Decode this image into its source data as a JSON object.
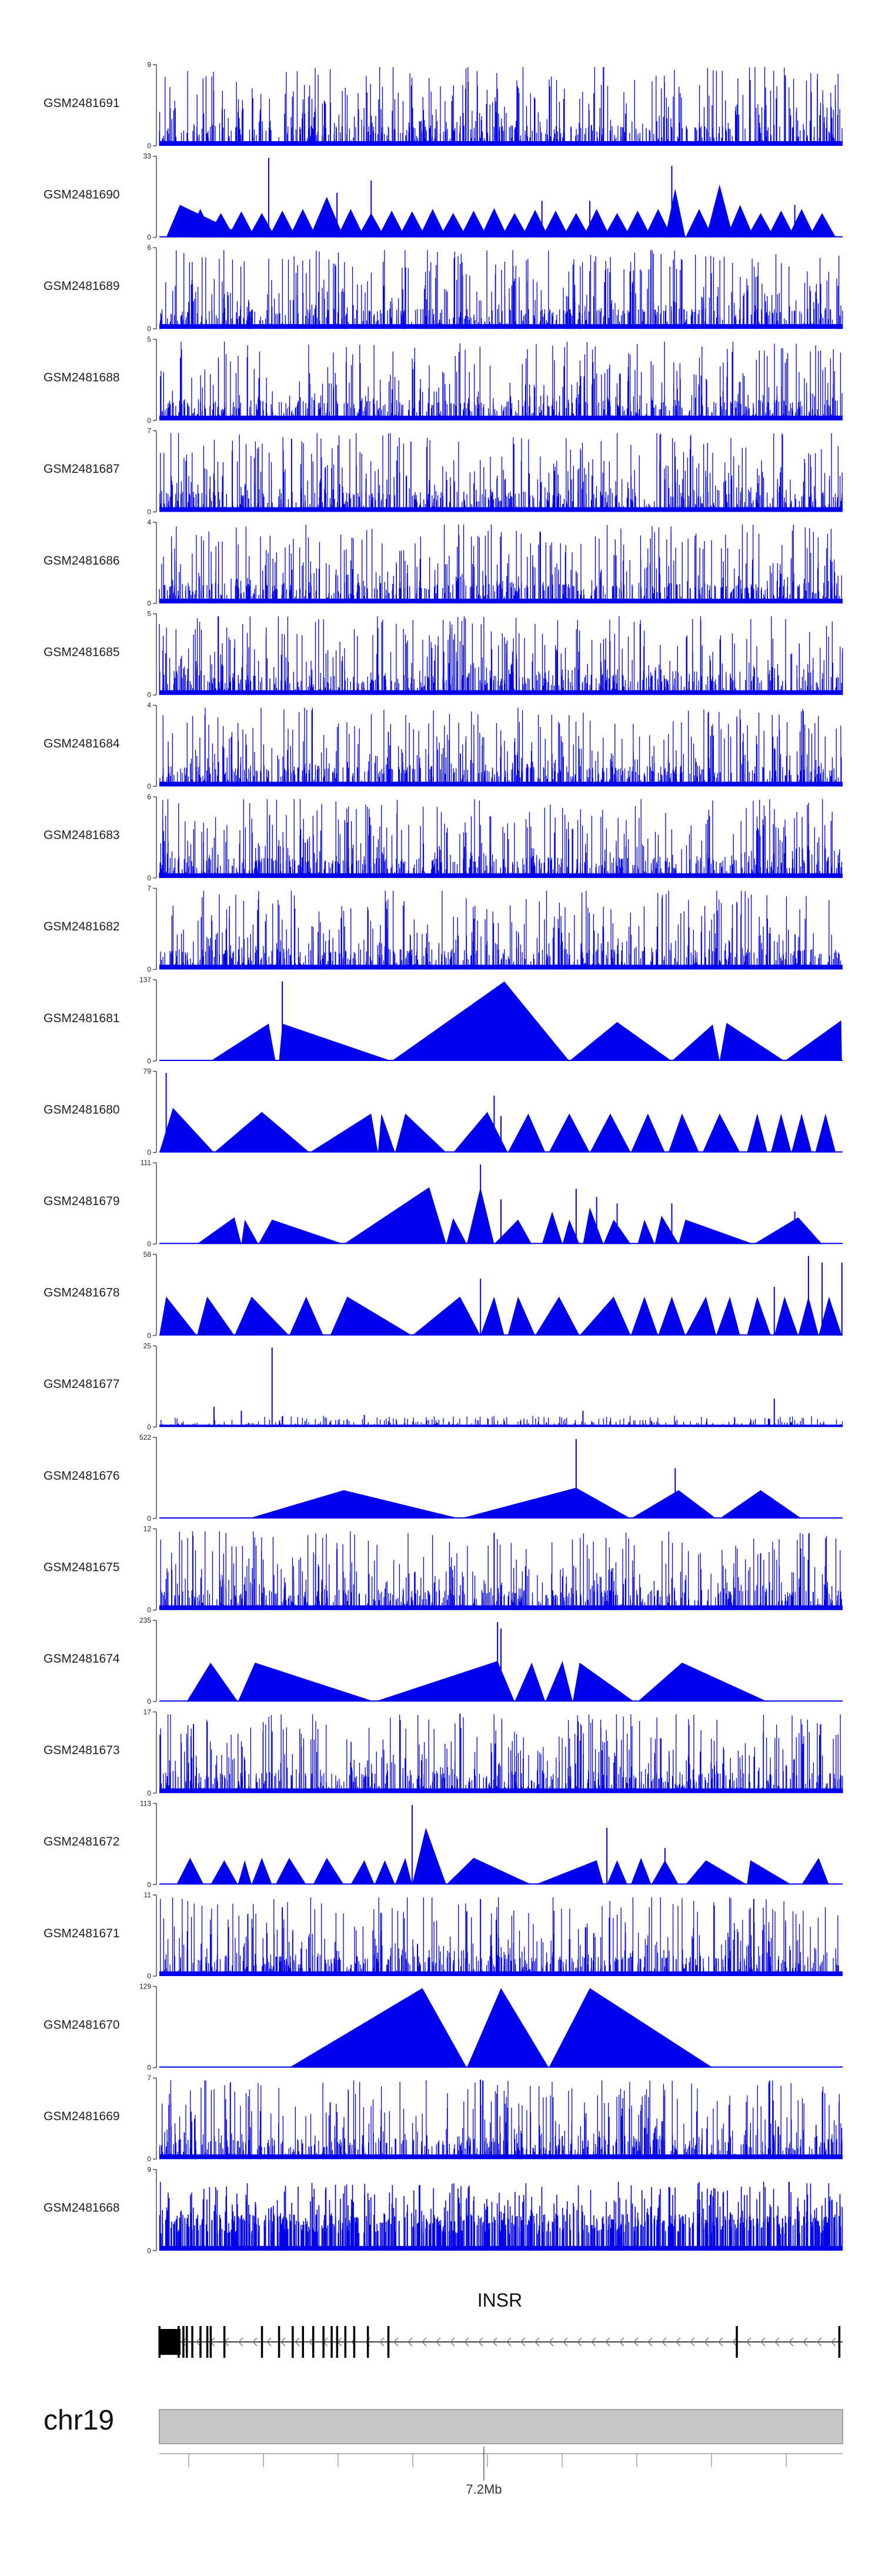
{
  "chart_data": {
    "type": "area",
    "title": "",
    "track_color": "#0000ee",
    "tracks": [
      {
        "name": "GSM2481691",
        "ymax": "9",
        "ymin": "0",
        "style": "spiky",
        "seed": 11
      },
      {
        "name": "GSM2481690",
        "ymax": "33",
        "ymin": "0",
        "style": "tri",
        "seed": 12,
        "peaks": [
          [
            0.01,
            0.03,
            0.13,
            0.4
          ],
          [
            0.04,
            0.06,
            0.08,
            0.35
          ],
          [
            0.07,
            0.09,
            0.11,
            0.3
          ],
          [
            0.1,
            0.12,
            0.14,
            0.32
          ],
          [
            0.13,
            0.15,
            0.17,
            0.3
          ],
          [
            0.16,
            0.18,
            0.2,
            0.33
          ],
          [
            0.19,
            0.21,
            0.23,
            0.35
          ],
          [
            0.22,
            0.245,
            0.27,
            0.5
          ],
          [
            0.26,
            0.28,
            0.3,
            0.35
          ],
          [
            0.29,
            0.31,
            0.33,
            0.3
          ],
          [
            0.32,
            0.34,
            0.36,
            0.33
          ],
          [
            0.35,
            0.37,
            0.39,
            0.32
          ],
          [
            0.38,
            0.4,
            0.42,
            0.35
          ],
          [
            0.41,
            0.43,
            0.45,
            0.3
          ],
          [
            0.44,
            0.46,
            0.48,
            0.33
          ],
          [
            0.47,
            0.49,
            0.51,
            0.36
          ],
          [
            0.5,
            0.52,
            0.54,
            0.3
          ],
          [
            0.53,
            0.55,
            0.57,
            0.34
          ],
          [
            0.56,
            0.58,
            0.6,
            0.33
          ],
          [
            0.59,
            0.61,
            0.63,
            0.3
          ],
          [
            0.62,
            0.64,
            0.66,
            0.35
          ],
          [
            0.65,
            0.67,
            0.69,
            0.3
          ],
          [
            0.68,
            0.7,
            0.72,
            0.33
          ],
          [
            0.71,
            0.73,
            0.75,
            0.35
          ],
          [
            0.74,
            0.755,
            0.77,
            0.6
          ],
          [
            0.77,
            0.79,
            0.81,
            0.35
          ],
          [
            0.8,
            0.82,
            0.84,
            0.65
          ],
          [
            0.83,
            0.85,
            0.87,
            0.4
          ],
          [
            0.86,
            0.88,
            0.9,
            0.3
          ],
          [
            0.89,
            0.91,
            0.93,
            0.33
          ],
          [
            0.92,
            0.94,
            0.96,
            0.35
          ],
          [
            0.95,
            0.97,
            0.99,
            0.3
          ]
        ],
        "spikes": [
          [
            0.16,
            0.98
          ],
          [
            0.26,
            0.55
          ],
          [
            0.31,
            0.7
          ],
          [
            0.56,
            0.45
          ],
          [
            0.63,
            0.45
          ],
          [
            0.75,
            0.88
          ],
          [
            0.93,
            0.4
          ]
        ]
      },
      {
        "name": "GSM2481689",
        "ymax": "6",
        "ymin": "0",
        "style": "spiky",
        "seed": 13
      },
      {
        "name": "GSM2481688",
        "ymax": "5",
        "ymin": "0",
        "style": "spiky",
        "seed": 14
      },
      {
        "name": "GSM2481687",
        "ymax": "7",
        "ymin": "0",
        "style": "spiky",
        "seed": 15
      },
      {
        "name": "GSM2481686",
        "ymax": "4",
        "ymin": "0",
        "style": "spiky",
        "seed": 16
      },
      {
        "name": "GSM2481685",
        "ymax": "5",
        "ymin": "0",
        "style": "spiky",
        "seed": 17
      },
      {
        "name": "GSM2481684",
        "ymax": "4",
        "ymin": "0",
        "style": "spiky",
        "seed": 18
      },
      {
        "name": "GSM2481683",
        "ymax": "6",
        "ymin": "0",
        "style": "spiky",
        "seed": 19
      },
      {
        "name": "GSM2481682",
        "ymax": "7",
        "ymin": "0",
        "style": "spiky",
        "seed": 20
      },
      {
        "name": "GSM2481681",
        "ymax": "137",
        "ymin": "0",
        "style": "tri",
        "seed": 21,
        "peaks": [
          [
            0.075,
            0.16,
            0.17,
            0.46
          ],
          [
            0.175,
            0.18,
            0.34,
            0.46
          ],
          [
            0.34,
            0.505,
            0.6,
            0.98
          ],
          [
            0.6,
            0.67,
            0.75,
            0.48
          ],
          [
            0.75,
            0.81,
            0.82,
            0.45
          ],
          [
            0.82,
            0.83,
            0.915,
            0.47
          ],
          [
            0.915,
            0.998,
            0.999,
            0.5
          ]
        ],
        "spikes": [
          [
            0.18,
            0.98
          ]
        ]
      },
      {
        "name": "GSM2481680",
        "ymax": "79",
        "ymin": "0",
        "style": "tri",
        "seed": 22,
        "peaks": [
          [
            0.0,
            0.02,
            0.08,
            0.55
          ],
          [
            0.08,
            0.15,
            0.22,
            0.5
          ],
          [
            0.22,
            0.31,
            0.32,
            0.48
          ],
          [
            0.32,
            0.325,
            0.345,
            0.48
          ],
          [
            0.345,
            0.36,
            0.42,
            0.48
          ],
          [
            0.43,
            0.48,
            0.51,
            0.5
          ],
          [
            0.51,
            0.54,
            0.565,
            0.48
          ],
          [
            0.57,
            0.6,
            0.63,
            0.48
          ],
          [
            0.63,
            0.66,
            0.69,
            0.48
          ],
          [
            0.69,
            0.715,
            0.74,
            0.48
          ],
          [
            0.745,
            0.765,
            0.79,
            0.48
          ],
          [
            0.795,
            0.82,
            0.85,
            0.48
          ],
          [
            0.86,
            0.875,
            0.89,
            0.48
          ],
          [
            0.895,
            0.91,
            0.925,
            0.48
          ],
          [
            0.925,
            0.94,
            0.955,
            0.48
          ],
          [
            0.96,
            0.975,
            0.99,
            0.48
          ]
        ],
        "spikes": [
          [
            0.01,
            0.98
          ],
          [
            0.49,
            0.7
          ],
          [
            0.5,
            0.45
          ]
        ]
      },
      {
        "name": "GSM2481679",
        "ymax": "111",
        "ymin": "0",
        "style": "tri",
        "seed": 23,
        "peaks": [
          [
            0.055,
            0.11,
            0.12,
            0.33
          ],
          [
            0.12,
            0.125,
            0.145,
            0.3
          ],
          [
            0.145,
            0.165,
            0.27,
            0.3
          ],
          [
            0.27,
            0.395,
            0.42,
            0.7
          ],
          [
            0.42,
            0.43,
            0.45,
            0.32
          ],
          [
            0.45,
            0.47,
            0.49,
            0.7
          ],
          [
            0.49,
            0.525,
            0.545,
            0.3
          ],
          [
            0.56,
            0.575,
            0.59,
            0.4
          ],
          [
            0.59,
            0.6,
            0.615,
            0.3
          ],
          [
            0.62,
            0.63,
            0.65,
            0.45
          ],
          [
            0.65,
            0.665,
            0.69,
            0.3
          ],
          [
            0.7,
            0.71,
            0.725,
            0.3
          ],
          [
            0.725,
            0.735,
            0.76,
            0.35
          ],
          [
            0.76,
            0.77,
            0.87,
            0.3
          ],
          [
            0.87,
            0.935,
            0.97,
            0.33
          ]
        ],
        "spikes": [
          [
            0.47,
            0.98
          ],
          [
            0.5,
            0.55
          ],
          [
            0.61,
            0.68
          ],
          [
            0.64,
            0.58
          ],
          [
            0.67,
            0.5
          ],
          [
            0.75,
            0.5
          ],
          [
            0.93,
            0.4
          ]
        ]
      },
      {
        "name": "GSM2481678",
        "ymax": "58",
        "ymin": "0",
        "style": "tri",
        "seed": 24,
        "peaks": [
          [
            0.0,
            0.01,
            0.055,
            0.48
          ],
          [
            0.055,
            0.07,
            0.11,
            0.48
          ],
          [
            0.11,
            0.135,
            0.19,
            0.48
          ],
          [
            0.19,
            0.215,
            0.24,
            0.48
          ],
          [
            0.25,
            0.275,
            0.37,
            0.48
          ],
          [
            0.37,
            0.44,
            0.47,
            0.48
          ],
          [
            0.47,
            0.49,
            0.505,
            0.48
          ],
          [
            0.51,
            0.525,
            0.55,
            0.48
          ],
          [
            0.55,
            0.585,
            0.615,
            0.48
          ],
          [
            0.615,
            0.665,
            0.69,
            0.48
          ],
          [
            0.69,
            0.71,
            0.73,
            0.48
          ],
          [
            0.73,
            0.75,
            0.77,
            0.48
          ],
          [
            0.77,
            0.8,
            0.815,
            0.48
          ],
          [
            0.815,
            0.835,
            0.85,
            0.48
          ],
          [
            0.86,
            0.875,
            0.895,
            0.48
          ],
          [
            0.9,
            0.915,
            0.935,
            0.48
          ],
          [
            0.935,
            0.95,
            0.965,
            0.48
          ],
          [
            0.965,
            0.98,
            0.999,
            0.48
          ]
        ],
        "spikes": [
          [
            0.47,
            0.7
          ],
          [
            0.95,
            0.98
          ],
          [
            0.97,
            0.9
          ],
          [
            0.999,
            0.9
          ],
          [
            0.9,
            0.6
          ]
        ]
      },
      {
        "name": "GSM2481677",
        "ymax": "25",
        "ymin": "0",
        "style": "spiky",
        "seed": 25,
        "sparse": true,
        "spikes": [
          [
            0.165,
            0.98
          ],
          [
            0.08,
            0.25
          ],
          [
            0.12,
            0.2
          ],
          [
            0.3,
            0.15
          ],
          [
            0.62,
            0.2
          ],
          [
            0.9,
            0.35
          ]
        ]
      },
      {
        "name": "GSM2481676",
        "ymax": "522",
        "ymin": "0",
        "style": "tri",
        "seed": 26,
        "peaks": [
          [
            0.13,
            0.27,
            0.44,
            0.35
          ],
          [
            0.44,
            0.61,
            0.69,
            0.38
          ],
          [
            0.69,
            0.76,
            0.815,
            0.35
          ],
          [
            0.82,
            0.88,
            0.94,
            0.35
          ]
        ],
        "spikes": [
          [
            0.61,
            0.98
          ],
          [
            0.755,
            0.62
          ]
        ]
      },
      {
        "name": "GSM2481675",
        "ymax": "12",
        "ymin": "0",
        "style": "spiky",
        "seed": 27,
        "spikes": [
          [
            0.49,
            0.95
          ],
          [
            0.26,
            0.75
          ],
          [
            0.88,
            0.7
          ]
        ]
      },
      {
        "name": "GSM2481674",
        "ymax": "235",
        "ymin": "0",
        "style": "tri",
        "seed": 28,
        "peaks": [
          [
            0.04,
            0.075,
            0.115,
            0.48
          ],
          [
            0.115,
            0.14,
            0.315,
            0.48
          ],
          [
            0.315,
            0.495,
            0.52,
            0.5
          ],
          [
            0.52,
            0.545,
            0.565,
            0.48
          ],
          [
            0.565,
            0.59,
            0.605,
            0.5
          ],
          [
            0.605,
            0.615,
            0.695,
            0.48
          ],
          [
            0.7,
            0.765,
            0.89,
            0.48
          ]
        ],
        "spikes": [
          [
            0.495,
            0.98
          ],
          [
            0.5,
            0.9
          ]
        ]
      },
      {
        "name": "GSM2481673",
        "ymax": "17",
        "ymin": "0",
        "style": "spiky",
        "seed": 29,
        "spikes": [
          [
            0.44,
            0.98
          ],
          [
            0.05,
            0.85
          ]
        ]
      },
      {
        "name": "GSM2481672",
        "ymax": "113",
        "ymin": "0",
        "style": "tri",
        "seed": 30,
        "peaks": [
          [
            0.025,
            0.045,
            0.065,
            0.33
          ],
          [
            0.075,
            0.095,
            0.115,
            0.3
          ],
          [
            0.115,
            0.125,
            0.135,
            0.3
          ],
          [
            0.135,
            0.15,
            0.165,
            0.33
          ],
          [
            0.17,
            0.19,
            0.215,
            0.33
          ],
          [
            0.225,
            0.245,
            0.27,
            0.33
          ],
          [
            0.28,
            0.3,
            0.315,
            0.3
          ],
          [
            0.315,
            0.33,
            0.345,
            0.3
          ],
          [
            0.345,
            0.36,
            0.37,
            0.33
          ],
          [
            0.37,
            0.39,
            0.42,
            0.7
          ],
          [
            0.42,
            0.46,
            0.545,
            0.33
          ],
          [
            0.55,
            0.64,
            0.65,
            0.3
          ],
          [
            0.655,
            0.67,
            0.685,
            0.3
          ],
          [
            0.69,
            0.705,
            0.72,
            0.33
          ],
          [
            0.72,
            0.74,
            0.76,
            0.3
          ],
          [
            0.77,
            0.8,
            0.86,
            0.3
          ],
          [
            0.86,
            0.865,
            0.925,
            0.3
          ],
          [
            0.94,
            0.965,
            0.98,
            0.33
          ]
        ],
        "spikes": [
          [
            0.37,
            0.98
          ],
          [
            0.655,
            0.7
          ],
          [
            0.74,
            0.45
          ]
        ]
      },
      {
        "name": "GSM2481671",
        "ymax": "11",
        "ymin": "0",
        "style": "spiky",
        "seed": 31,
        "spikes": [
          [
            0.47,
            0.95
          ],
          [
            0.87,
            0.95
          ],
          [
            0.18,
            0.85
          ],
          [
            0.45,
            0.8
          ]
        ]
      },
      {
        "name": "GSM2481670",
        "ymax": "129",
        "ymin": "0",
        "style": "tri",
        "seed": 32,
        "peaks": [
          [
            0.19,
            0.385,
            0.45,
            0.98
          ],
          [
            0.45,
            0.5,
            0.57,
            0.98
          ],
          [
            0.57,
            0.63,
            0.81,
            0.98
          ]
        ],
        "spikes": []
      },
      {
        "name": "GSM2481669",
        "ymax": "7",
        "ymin": "0",
        "style": "spiky",
        "seed": 33,
        "spikes": [
          [
            0.47,
            0.98
          ],
          [
            0.25,
            0.7
          ]
        ]
      },
      {
        "name": "GSM2481668",
        "ymax": "9",
        "ymin": "0",
        "style": "spiky",
        "seed": 34,
        "dense": true
      }
    ],
    "gene": {
      "name": "INSR",
      "strand": "-",
      "exons": [
        0.0,
        0.028,
        0.035,
        0.04,
        0.048,
        0.06,
        0.07,
        0.075,
        0.095,
        0.15,
        0.175,
        0.195,
        0.21,
        0.225,
        0.24,
        0.252,
        0.26,
        0.272,
        0.285,
        0.305,
        0.335,
        0.845,
        0.995
      ]
    },
    "chromosome": {
      "name": "chr19",
      "tick_label": "7.2Mb",
      "tick_label_pos": 0.475
    },
    "xlabel": "",
    "ylabel": ""
  }
}
